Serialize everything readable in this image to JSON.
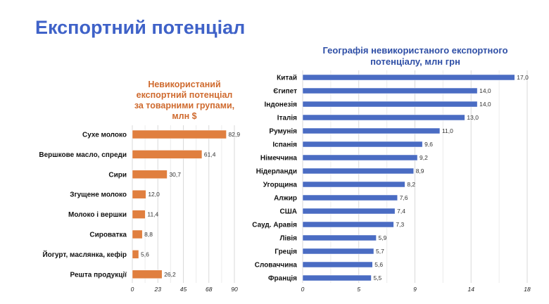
{
  "slide": {
    "title": "Експортний потенціал"
  },
  "chart_data": [
    {
      "type": "bar",
      "orientation": "horizontal",
      "title": "Невикористаний експортний потенціал за товарними групами, млн $",
      "title_lines": [
        "Невикористаний",
        "експортний потенціал",
        "за товарними групами,",
        "млн $"
      ],
      "categories": [
        "Сухе молоко",
        "Вершкове масло, спреди",
        "Сири",
        "Згущене молоко",
        "Молоко і вершки",
        "Сироватка",
        "Йогурт, маслянка, кефір",
        "Решта продукції"
      ],
      "values": [
        82.9,
        61.4,
        30.7,
        12.0,
        11.4,
        8.8,
        5.6,
        26.2
      ],
      "value_labels": [
        "82,9",
        "61,4",
        "30,7",
        "12,0",
        "11,4",
        "8,8",
        "5,6",
        "26,2"
      ],
      "xlim": [
        0,
        90
      ],
      "ticks": [
        "0",
        "23",
        "45",
        "68",
        "90"
      ],
      "tick_values": [
        0,
        22.5,
        45,
        67.5,
        90
      ],
      "grid": true,
      "color": "#e07f3f"
    },
    {
      "type": "bar",
      "orientation": "horizontal",
      "title": "Географія невикористаного експортного потенціалу, млн грн",
      "title_lines": [
        "Географія невикористаного експортного",
        "потенціалу, млн грн"
      ],
      "categories": [
        "Китай",
        "Єгипет",
        "Індонезія",
        "Італія",
        "Румунія",
        "Іспанія",
        "Німеччина",
        "Нідерланди",
        "Угорщина",
        "Алжир",
        "США",
        "Сауд. Аравія",
        "Лівія",
        "Греція",
        "Словаччина",
        "Франція"
      ],
      "values": [
        17.0,
        14.0,
        14.0,
        13.0,
        11.0,
        9.6,
        9.2,
        8.9,
        8.2,
        7.6,
        7.4,
        7.3,
        5.9,
        5.7,
        5.6,
        5.5
      ],
      "value_labels": [
        "17,0",
        "14,0",
        "14,0",
        "13,0",
        "11,0",
        "9,6",
        "9,2",
        "8,9",
        "8,2",
        "7,6",
        "7,4",
        "7,3",
        "5,9",
        "5,7",
        "5,6",
        "5,5"
      ],
      "xlim": [
        0,
        18
      ],
      "ticks": [
        "0",
        "5",
        "9",
        "14",
        "18"
      ],
      "tick_values": [
        0,
        4.5,
        9,
        13.5,
        18
      ],
      "grid": true,
      "color": "#4a6cc3"
    }
  ]
}
